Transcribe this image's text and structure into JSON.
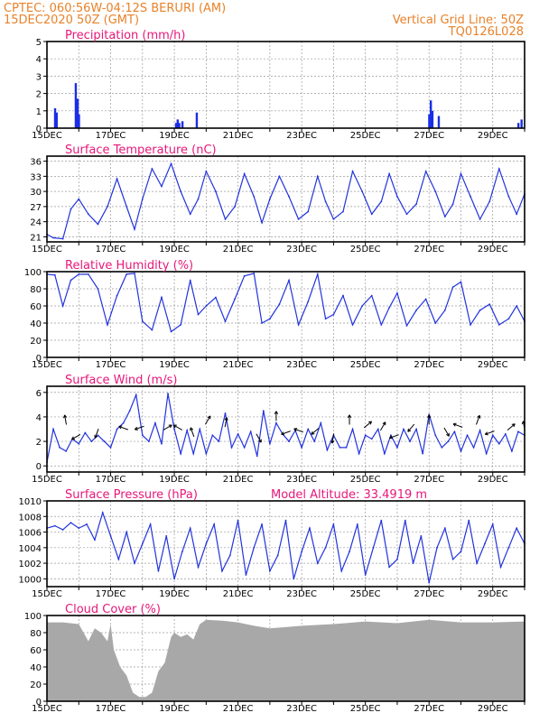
{
  "header": {
    "left_line1": "CPTEC:   060:56W-04:12S   BERURI (AM)",
    "left_line2": "15DEC2020 50Z (GMT)",
    "right_line1": "Vertical Grid Line: 50Z",
    "right_line2": "TQ0126L028"
  },
  "colors": {
    "header": "#e8822a",
    "title": "#e8177a",
    "series": "#2233dd",
    "cloud": "#a8a8a8"
  },
  "chart_data": [
    {
      "type": "bar",
      "title": "Precipitation (mm/h)",
      "x_days": [
        15,
        16,
        17,
        18,
        19,
        20,
        21,
        22,
        23,
        24,
        25,
        26,
        27,
        28,
        29,
        30
      ],
      "x_tick_labels": [
        "15DEC",
        "17DEC",
        "19DEC",
        "21DEC",
        "23DEC",
        "25DEC",
        "27DEC",
        "29DEC"
      ],
      "ylim": [
        0,
        5
      ],
      "y_ticks": [
        0,
        1,
        2,
        3,
        4,
        5
      ],
      "x": [
        15.25,
        15.3,
        15.9,
        15.93,
        15.96,
        16.0,
        19.05,
        19.1,
        19.15,
        19.25,
        19.7,
        27.0,
        27.05,
        27.1,
        27.3,
        29.8,
        29.9
      ],
      "values": [
        1.15,
        0.9,
        2.6,
        1.0,
        1.7,
        0.8,
        0.3,
        0.5,
        0.3,
        0.4,
        0.9,
        0.8,
        1.6,
        1.0,
        0.7,
        0.3,
        0.5
      ]
    },
    {
      "type": "line",
      "title": "Surface Temperature (nC)",
      "ylim": [
        20,
        37
      ],
      "y_ticks": [
        21,
        24,
        27,
        30,
        33,
        36
      ],
      "x": [
        15.0,
        15.2,
        15.5,
        15.75,
        16.0,
        16.3,
        16.6,
        16.9,
        17.2,
        17.5,
        17.75,
        18.0,
        18.3,
        18.6,
        18.9,
        19.2,
        19.5,
        19.75,
        20.0,
        20.3,
        20.6,
        20.9,
        21.2,
        21.5,
        21.75,
        22.0,
        22.3,
        22.6,
        22.9,
        23.2,
        23.5,
        23.75,
        24.0,
        24.3,
        24.6,
        24.9,
        25.2,
        25.5,
        25.75,
        26.0,
        26.3,
        26.6,
        26.9,
        27.2,
        27.5,
        27.75,
        28.0,
        28.3,
        28.6,
        28.9,
        29.2,
        29.5,
        29.75,
        30.0
      ],
      "y": [
        21.5,
        20.8,
        20.6,
        26.5,
        28.5,
        25.5,
        23.5,
        27,
        32.5,
        27,
        22.5,
        28.5,
        34.5,
        31,
        35.5,
        30,
        25.5,
        28.5,
        34,
        30,
        24.5,
        27,
        33.5,
        29,
        23.8,
        28.5,
        33,
        29,
        24.5,
        26,
        33,
        28,
        24.5,
        26,
        34,
        30,
        25.5,
        28,
        33.5,
        29,
        25.5,
        27.5,
        34,
        30,
        25,
        27.5,
        33.5,
        29,
        24.5,
        28,
        34.5,
        29,
        25.5,
        29.5
      ]
    },
    {
      "type": "line",
      "title": "Relative Humidity (%)",
      "ylim": [
        0,
        100
      ],
      "y_ticks": [
        0,
        20,
        40,
        60,
        80,
        100
      ],
      "x": [
        15.0,
        15.25,
        15.5,
        15.75,
        16.0,
        16.3,
        16.6,
        16.9,
        17.2,
        17.5,
        17.75,
        18.0,
        18.3,
        18.6,
        18.9,
        19.2,
        19.5,
        19.75,
        20.0,
        20.3,
        20.6,
        20.9,
        21.2,
        21.5,
        21.75,
        22.0,
        22.3,
        22.6,
        22.9,
        23.2,
        23.5,
        23.75,
        24.0,
        24.3,
        24.6,
        24.9,
        25.2,
        25.5,
        25.75,
        26.0,
        26.3,
        26.6,
        26.9,
        27.2,
        27.5,
        27.75,
        28.0,
        28.3,
        28.6,
        28.9,
        29.2,
        29.5,
        29.75,
        30.0
      ],
      "y": [
        97,
        96,
        60,
        90,
        97,
        97,
        80,
        38,
        72,
        97,
        98,
        42,
        32,
        70,
        30,
        38,
        90,
        50,
        60,
        70,
        42,
        68,
        95,
        98,
        40,
        45,
        62,
        90,
        38,
        65,
        97,
        45,
        50,
        72,
        38,
        60,
        72,
        38,
        58,
        75,
        37,
        55,
        68,
        40,
        55,
        82,
        88,
        38,
        55,
        62,
        38,
        45,
        60,
        42
      ]
    },
    {
      "type": "line",
      "title": "Surface Wind (m/s)",
      "ylim": [
        -0.5,
        6.5
      ],
      "y_ticks": [
        0,
        2,
        4,
        6
      ],
      "x": [
        15.0,
        15.2,
        15.4,
        15.6,
        15.8,
        16.0,
        16.2,
        16.4,
        16.6,
        16.8,
        17.0,
        17.2,
        17.4,
        17.6,
        17.8,
        18.0,
        18.2,
        18.4,
        18.6,
        18.8,
        19.0,
        19.2,
        19.4,
        19.6,
        19.8,
        20.0,
        20.2,
        20.4,
        20.6,
        20.8,
        21.0,
        21.2,
        21.4,
        21.6,
        21.8,
        22.0,
        22.2,
        22.4,
        22.6,
        22.8,
        23.0,
        23.2,
        23.4,
        23.6,
        23.8,
        24.0,
        24.2,
        24.4,
        24.6,
        24.8,
        25.0,
        25.2,
        25.4,
        25.6,
        25.8,
        26.0,
        26.2,
        26.4,
        26.6,
        26.8,
        27.0,
        27.2,
        27.4,
        27.6,
        27.8,
        28.0,
        28.2,
        28.4,
        28.6,
        28.8,
        29.0,
        29.2,
        29.4,
        29.6,
        29.8,
        30.0
      ],
      "y": [
        0.3,
        3.0,
        1.5,
        1.2,
        2.2,
        1.8,
        2.7,
        2.0,
        2.5,
        2.0,
        1.5,
        3.0,
        3.5,
        4.5,
        5.8,
        2.5,
        2.0,
        3.5,
        1.8,
        5.9,
        3.0,
        1.0,
        2.9,
        1.0,
        3.0,
        1.0,
        2.5,
        2.0,
        4.3,
        1.5,
        2.6,
        1.5,
        2.8,
        0.8,
        4.5,
        1.8,
        3.5,
        2.6,
        2.0,
        2.9,
        1.5,
        3.0,
        2.0,
        3.5,
        1.3,
        2.5,
        1.5,
        1.5,
        3.0,
        1.0,
        2.5,
        2.2,
        3.0,
        1.0,
        2.5,
        1.5,
        3.0,
        2.0,
        3.0,
        1.0,
        4.2,
        2.5,
        1.5,
        2.0,
        2.8,
        1.2,
        2.5,
        1.5,
        2.9,
        1.0,
        2.5,
        1.8,
        2.6,
        1.2,
        2.8,
        2.5
      ],
      "arrows": [
        {
          "x": 15.6,
          "y": 3.5,
          "dir": 100
        },
        {
          "x": 16.0,
          "y": 2.5,
          "dir": 210
        },
        {
          "x": 16.6,
          "y": 2.9,
          "dir": 250
        },
        {
          "x": 17.5,
          "y": 3.0,
          "dir": 160
        },
        {
          "x": 18.0,
          "y": 3.2,
          "dir": 200
        },
        {
          "x": 18.7,
          "y": 3.0,
          "dir": 30
        },
        {
          "x": 19.2,
          "y": 3.0,
          "dir": 150
        },
        {
          "x": 19.6,
          "y": 2.5,
          "dir": 110
        },
        {
          "x": 20.0,
          "y": 3.5,
          "dir": 60
        },
        {
          "x": 20.6,
          "y": 3.3,
          "dir": 80
        },
        {
          "x": 21.6,
          "y": 2.5,
          "dir": 300
        },
        {
          "x": 22.2,
          "y": 3.8,
          "dir": 90
        },
        {
          "x": 22.6,
          "y": 2.8,
          "dir": 200
        },
        {
          "x": 23.0,
          "y": 2.8,
          "dir": 160
        },
        {
          "x": 23.5,
          "y": 3.0,
          "dir": 220
        },
        {
          "x": 24.0,
          "y": 2.5,
          "dir": 260
        },
        {
          "x": 24.5,
          "y": 3.5,
          "dir": 90
        },
        {
          "x": 25.0,
          "y": 3.2,
          "dir": 40
        },
        {
          "x": 25.5,
          "y": 3.0,
          "dir": 60
        },
        {
          "x": 26.0,
          "y": 2.5,
          "dir": 200
        },
        {
          "x": 26.5,
          "y": 3.3,
          "dir": 230
        },
        {
          "x": 27.0,
          "y": 3.5,
          "dir": 90
        },
        {
          "x": 27.5,
          "y": 3.0,
          "dir": 300
        },
        {
          "x": 28.0,
          "y": 3.2,
          "dir": 160
        },
        {
          "x": 28.5,
          "y": 3.5,
          "dir": 70
        },
        {
          "x": 29.0,
          "y": 2.8,
          "dir": 200
        },
        {
          "x": 29.5,
          "y": 3.0,
          "dir": 40
        },
        {
          "x": 30.0,
          "y": 3.0,
          "dir": 100
        }
      ]
    },
    {
      "type": "line",
      "title": "Surface Pressure (hPa)",
      "annotation": "Model Altitude: 33.4919 m",
      "ylim": [
        999,
        1010
      ],
      "y_ticks": [
        1000,
        1002,
        1004,
        1006,
        1008,
        1010
      ],
      "x": [
        15.0,
        15.25,
        15.5,
        15.75,
        16.0,
        16.25,
        16.5,
        16.75,
        17.0,
        17.25,
        17.5,
        17.75,
        18.0,
        18.25,
        18.5,
        18.75,
        19.0,
        19.25,
        19.5,
        19.75,
        20.0,
        20.25,
        20.5,
        20.75,
        21.0,
        21.25,
        21.5,
        21.75,
        22.0,
        22.25,
        22.5,
        22.75,
        23.0,
        23.25,
        23.5,
        23.75,
        24.0,
        24.25,
        24.5,
        24.75,
        25.0,
        25.25,
        25.5,
        25.75,
        26.0,
        26.25,
        26.5,
        26.75,
        27.0,
        27.25,
        27.5,
        27.75,
        28.0,
        28.25,
        28.5,
        28.75,
        29.0,
        29.25,
        29.5,
        29.75,
        30.0
      ],
      "y": [
        1006.5,
        1006.8,
        1006.3,
        1007.2,
        1006.5,
        1007.0,
        1005.0,
        1008.5,
        1005.5,
        1002.5,
        1006.0,
        1002.0,
        1004.5,
        1007.0,
        1001.0,
        1005.5,
        1000.0,
        1003.5,
        1006.5,
        1001.5,
        1004.5,
        1007.0,
        1001.0,
        1003.0,
        1007.5,
        1000.5,
        1004.0,
        1007.0,
        1001.0,
        1003.0,
        1007.5,
        1000.0,
        1003.5,
        1006.5,
        1002.0,
        1004.0,
        1007.0,
        1001.0,
        1003.5,
        1007.0,
        1000.5,
        1004.0,
        1007.5,
        1001.5,
        1002.5,
        1007.5,
        1002.0,
        1005.5,
        999.5,
        1004.0,
        1006.5,
        1002.5,
        1003.5,
        1007.5,
        1002.0,
        1004.5,
        1007.0,
        1001.5,
        1004.0,
        1006.5,
        1004.5
      ]
    },
    {
      "type": "area",
      "title": "Cloud Cover (%)",
      "ylim": [
        0,
        100
      ],
      "y_ticks": [
        0,
        20,
        40,
        60,
        80,
        100
      ],
      "x": [
        15.0,
        15.5,
        16.0,
        16.3,
        16.5,
        16.7,
        16.9,
        17.0,
        17.1,
        17.3,
        17.5,
        17.7,
        17.9,
        18.1,
        18.3,
        18.5,
        18.7,
        18.9,
        19.0,
        19.2,
        19.4,
        19.6,
        19.8,
        20.0,
        20.5,
        21.0,
        21.5,
        22.0,
        23.0,
        24.0,
        25.0,
        26.0,
        27.0,
        28.0,
        29.0,
        30.0
      ],
      "y": [
        92,
        92,
        90,
        70,
        85,
        80,
        70,
        90,
        60,
        40,
        30,
        10,
        5,
        5,
        10,
        35,
        45,
        75,
        80,
        75,
        78,
        72,
        90,
        95,
        94,
        92,
        88,
        85,
        88,
        90,
        93,
        91,
        95,
        92,
        92,
        93
      ]
    }
  ]
}
